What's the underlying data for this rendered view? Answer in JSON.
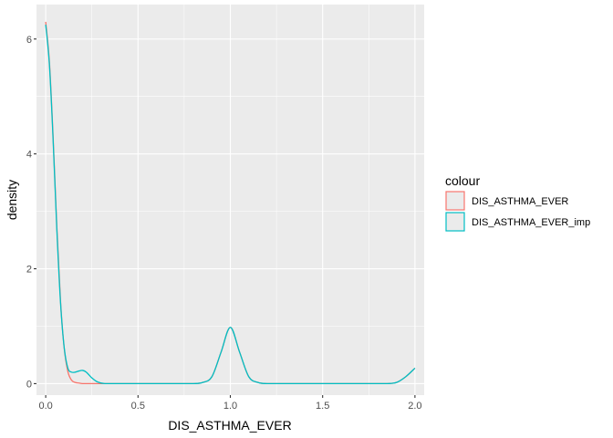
{
  "chart_data": {
    "type": "line",
    "xlabel": "DIS_ASTHMA_EVER",
    "ylabel": "density",
    "xlim": [
      -0.05,
      2.05
    ],
    "ylim": [
      -0.2,
      6.6
    ],
    "x_ticks": [
      0.0,
      0.5,
      1.0,
      1.5,
      2.0
    ],
    "x_tick_labels": [
      "0.0",
      "0.5",
      "1.0",
      "1.5",
      "2.0"
    ],
    "y_ticks": [
      0,
      2,
      4,
      6
    ],
    "y_tick_labels": [
      "0",
      "2",
      "4",
      "6"
    ],
    "grid": true,
    "legend": {
      "title": "colour",
      "position": "right"
    },
    "series": [
      {
        "name": "DIS_ASTHMA_EVER",
        "color": "#F8766D",
        "x": [
          0.0,
          0.02,
          0.04,
          0.06,
          0.08,
          0.1,
          0.12,
          0.14,
          0.16,
          0.18,
          0.2,
          0.25,
          0.3,
          0.4,
          0.5,
          0.6,
          0.7,
          0.8,
          0.85,
          0.9,
          0.95,
          1.0,
          1.05,
          1.1,
          1.15,
          1.2,
          1.3,
          1.4,
          1.5,
          1.6,
          1.7,
          1.8,
          1.85,
          1.9,
          1.95,
          2.0
        ],
        "y": [
          6.3,
          5.6,
          4.3,
          2.75,
          1.45,
          0.62,
          0.21,
          0.06,
          0.02,
          0.01,
          0.0,
          0.0,
          0.0,
          0.0,
          0.0,
          0.0,
          0.0,
          0.0,
          0.02,
          0.12,
          0.55,
          0.98,
          0.55,
          0.12,
          0.02,
          0.0,
          0.0,
          0.0,
          0.0,
          0.0,
          0.0,
          0.0,
          0.0,
          0.02,
          0.12,
          0.27
        ]
      },
      {
        "name": "DIS_ASTHMA_EVER_imp",
        "color": "#00BFC4",
        "x": [
          0.0,
          0.02,
          0.04,
          0.06,
          0.08,
          0.1,
          0.12,
          0.14,
          0.16,
          0.18,
          0.2,
          0.22,
          0.25,
          0.28,
          0.32,
          0.4,
          0.5,
          0.6,
          0.7,
          0.8,
          0.85,
          0.9,
          0.95,
          1.0,
          1.05,
          1.1,
          1.15,
          1.2,
          1.3,
          1.4,
          1.5,
          1.6,
          1.7,
          1.8,
          1.85,
          1.9,
          1.95,
          2.0
        ],
        "y": [
          6.25,
          5.55,
          4.25,
          2.7,
          1.42,
          0.63,
          0.27,
          0.2,
          0.2,
          0.22,
          0.23,
          0.2,
          0.1,
          0.03,
          0.0,
          0.0,
          0.0,
          0.0,
          0.0,
          0.0,
          0.02,
          0.12,
          0.55,
          0.98,
          0.55,
          0.12,
          0.02,
          0.0,
          0.0,
          0.0,
          0.0,
          0.0,
          0.0,
          0.0,
          0.0,
          0.02,
          0.12,
          0.27
        ]
      }
    ]
  }
}
